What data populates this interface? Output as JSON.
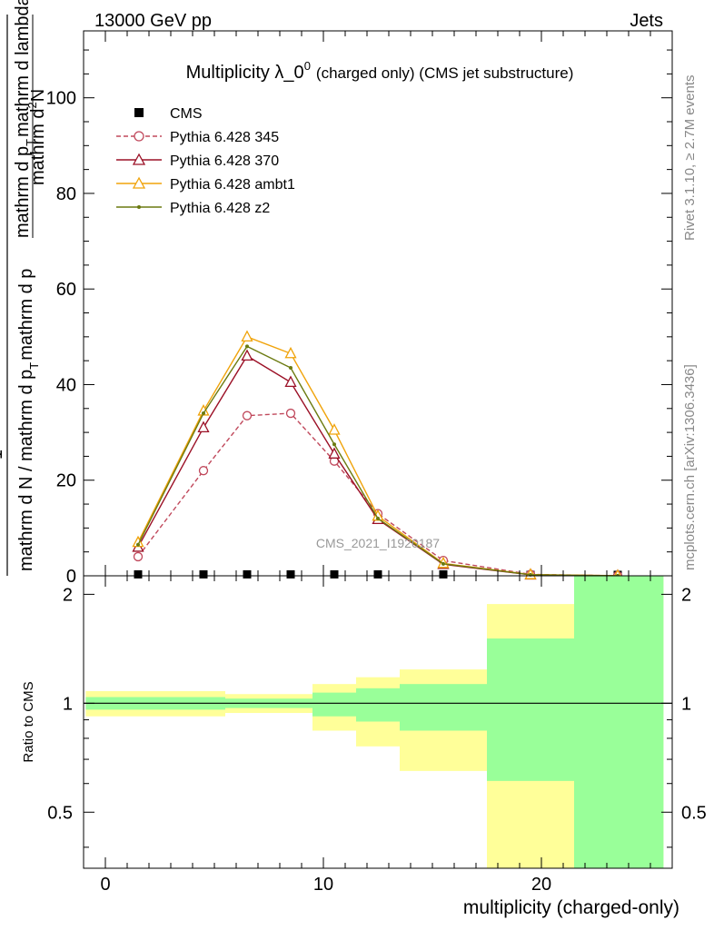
{
  "header": {
    "left": "13000 GeV pp",
    "right": "Jets"
  },
  "side_labels": {
    "rivet": "Rivet 3.1.10, ≥ 2.7M events",
    "mcplots": "mcplots.cern.ch [arXiv:1306.3436]"
  },
  "watermark": "CMS_2021_I1920187",
  "chart_data": [
    {
      "type": "line",
      "title": "Multiplicity λ_0",
      "title_sup": "0",
      "subtitle": "(charged only) (CMS jet substructure)",
      "ylabel": {
        "fraction_numerator": "1",
        "denominator": "mathrm d N / mathrm d p",
        "denominator_sub": "T",
        "denominator_tail": "mathrm d p",
        "right_numerator": "mathrm d",
        "right_sup": "2",
        "right_n": "N",
        "right_denominator": "mathrm d p",
        "right_denominator_sub": "T",
        "right_denominator_tail": "mathrm d lambda"
      },
      "xlim": [
        -1,
        26
      ],
      "ylim": [
        0,
        114
      ],
      "y_ticks": [
        0,
        20,
        40,
        60,
        80,
        100
      ],
      "y_tick_labels": [
        "0",
        "20",
        "40",
        "60",
        "80",
        "100"
      ],
      "grid": false,
      "legend_position": "top-left",
      "series": [
        {
          "name": "CMS",
          "color": "#000000",
          "marker": "square",
          "x": [
            1.5,
            4.5,
            6.5,
            8.5,
            10.5,
            12.5,
            15.5,
            19.5,
            23.5
          ],
          "y": [
            0.3,
            0.3,
            0.3,
            0.3,
            0.3,
            0.3,
            0.3,
            0.2,
            0.2
          ]
        },
        {
          "name": "Pythia 6.428 345",
          "color": "#c0485b",
          "marker": "circle",
          "dashed": true,
          "x": [
            1.5,
            4.5,
            6.5,
            8.5,
            10.5,
            12.5,
            15.5,
            19.5,
            23.5
          ],
          "y": [
            4,
            22,
            33.5,
            34,
            24,
            13,
            3.2,
            0.3,
            0.02
          ]
        },
        {
          "name": "Pythia 6.428 370",
          "color": "#9b1026",
          "marker": "triangle",
          "x": [
            1.5,
            4.5,
            6.5,
            8.5,
            10.5,
            12.5,
            15.5,
            19.5,
            23.5
          ],
          "y": [
            6,
            31,
            46,
            40.5,
            25.5,
            11.8,
            2.4,
            0.2,
            0.02
          ]
        },
        {
          "name": "Pythia 6.428 ambt1",
          "color": "#f0a30a",
          "marker": "triangle",
          "x": [
            1.5,
            4.5,
            6.5,
            8.5,
            10.5,
            12.5,
            15.5,
            19.5,
            23.5
          ],
          "y": [
            7,
            34.5,
            50,
            46.5,
            30.5,
            12.5,
            2.6,
            0.25,
            0.03
          ]
        },
        {
          "name": "Pythia 6.428 z2",
          "color": "#6b7a10",
          "marker": "dot",
          "x": [
            1.5,
            4.5,
            6.5,
            8.5,
            10.5,
            12.5,
            15.5,
            19.5,
            23.5
          ],
          "y": [
            6.5,
            34,
            48,
            43.5,
            27.5,
            12,
            2.5,
            0.22,
            0.02
          ]
        }
      ]
    },
    {
      "type": "area",
      "ylabel": "Ratio to CMS",
      "xlabel": "multiplicity (charged-only)",
      "xlim": [
        -1,
        26
      ],
      "ylim": [
        0.35,
        2.25
      ],
      "x_ticks": [
        0,
        10,
        20
      ],
      "x_tick_labels": [
        "0",
        "10",
        "20"
      ],
      "y_ticks": [
        0.5,
        1,
        2
      ],
      "y_tick_labels": [
        "0.5",
        "1",
        "2"
      ],
      "reference_line": 1,
      "bands": [
        {
          "x0": -0.9,
          "x1": 5.5,
          "yellow": [
            0.92,
            1.08
          ],
          "green": [
            0.96,
            1.04
          ]
        },
        {
          "x0": 5.5,
          "x1": 9.5,
          "yellow": [
            0.94,
            1.06
          ],
          "green": [
            0.97,
            1.03
          ]
        },
        {
          "x0": 9.5,
          "x1": 11.5,
          "yellow": [
            0.84,
            1.13
          ],
          "green": [
            0.92,
            1.07
          ]
        },
        {
          "x0": 11.5,
          "x1": 13.5,
          "yellow": [
            0.76,
            1.18
          ],
          "green": [
            0.89,
            1.1
          ]
        },
        {
          "x0": 13.5,
          "x1": 17.5,
          "yellow": [
            0.65,
            1.24
          ],
          "green": [
            0.84,
            1.13
          ]
        },
        {
          "x0": 17.5,
          "x1": 21.5,
          "yellow": [
            0.35,
            1.88
          ],
          "green": [
            0.61,
            1.51
          ]
        },
        {
          "x0": 21.5,
          "x1": 25.6,
          "yellow": [
            0.35,
            2.25
          ],
          "green": [
            0.35,
            2.25
          ]
        }
      ],
      "band_colors": {
        "yellow": "#ffff99",
        "green": "#99ff99"
      }
    }
  ]
}
